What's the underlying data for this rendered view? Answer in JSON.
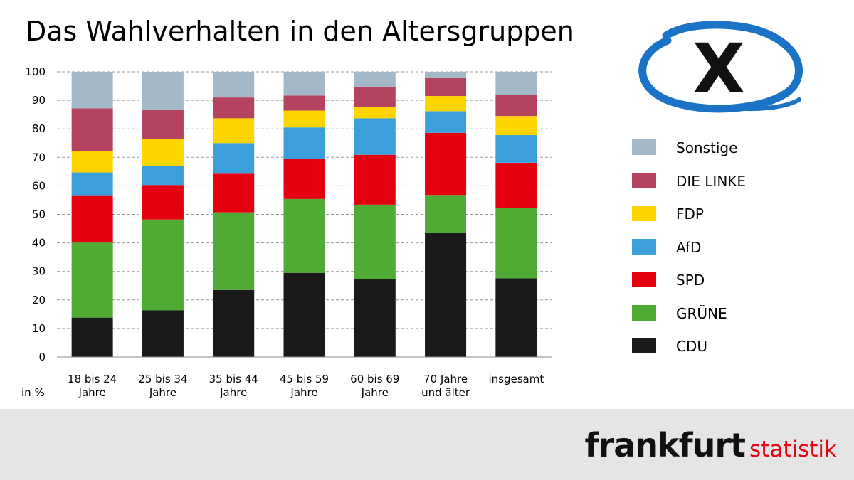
{
  "title": "Das Wahlverhalten in den Altersgruppen",
  "unit_label": "in %",
  "logo": {
    "main": "frankfurt",
    "sub": "statistik"
  },
  "ballot_mark": "X",
  "colors": {
    "CDU": "#1a1a1a",
    "GRÜNE": "#4fab33",
    "SPD": "#e3000f",
    "AfD": "#3b9fdc",
    "FDP": "#ffd500",
    "DIE LINKE": "#b5435f",
    "Sonstige": "#a3b8c9",
    "ballot": "#1a73c5",
    "footer": "#e5e5e5",
    "logo_sub": "#e20613"
  },
  "legend": [
    {
      "label": "Sonstige",
      "color": "#a3b8c9"
    },
    {
      "label": "DIE LINKE",
      "color": "#b5435f"
    },
    {
      "label": "FDP",
      "color": "#ffd500"
    },
    {
      "label": "AfD",
      "color": "#3b9fdc"
    },
    {
      "label": "SPD",
      "color": "#e3000f"
    },
    {
      "label": "GRÜNE",
      "color": "#4fab33"
    },
    {
      "label": "CDU",
      "color": "#1a1a1a"
    }
  ],
  "chart_data": {
    "type": "bar",
    "stacked": true,
    "title": "Das Wahlverhalten in den Altersgruppen",
    "ylabel": "in %",
    "ylim": [
      0,
      100
    ],
    "yticks": [
      0,
      10,
      20,
      30,
      40,
      50,
      60,
      70,
      80,
      90,
      100
    ],
    "grid": true,
    "legend_position": "right",
    "categories": [
      [
        "18 bis 24",
        "Jahre"
      ],
      [
        "25 bis 34",
        "Jahre"
      ],
      [
        "35 bis 44",
        "Jahre"
      ],
      [
        "45 bis 59",
        "Jahre"
      ],
      [
        "60 bis 69",
        "Jahre"
      ],
      [
        "70 Jahre",
        "und älter"
      ],
      [
        "insgesamt"
      ]
    ],
    "series": [
      {
        "name": "CDU",
        "values": [
          13.8,
          16.4,
          23.5,
          29.5,
          27.3,
          43.6,
          27.6
        ]
      },
      {
        "name": "GRÜNE",
        "values": [
          26.3,
          31.8,
          27.2,
          25.9,
          26.1,
          13.2,
          24.6
        ]
      },
      {
        "name": "SPD",
        "values": [
          16.6,
          12.1,
          13.8,
          14.0,
          17.5,
          21.8,
          15.9
        ]
      },
      {
        "name": "AfD",
        "values": [
          8.0,
          6.8,
          10.5,
          11.1,
          12.8,
          7.6,
          9.7
        ]
      },
      {
        "name": "FDP",
        "values": [
          7.4,
          9.3,
          8.7,
          5.9,
          4.0,
          5.3,
          6.7
        ]
      },
      {
        "name": "DIE LINKE",
        "values": [
          15.1,
          10.3,
          7.3,
          5.3,
          7.1,
          6.5,
          7.5
        ]
      },
      {
        "name": "Sonstige",
        "values": [
          12.8,
          13.3,
          9.0,
          8.3,
          5.2,
          2.0,
          8.0
        ]
      }
    ]
  }
}
